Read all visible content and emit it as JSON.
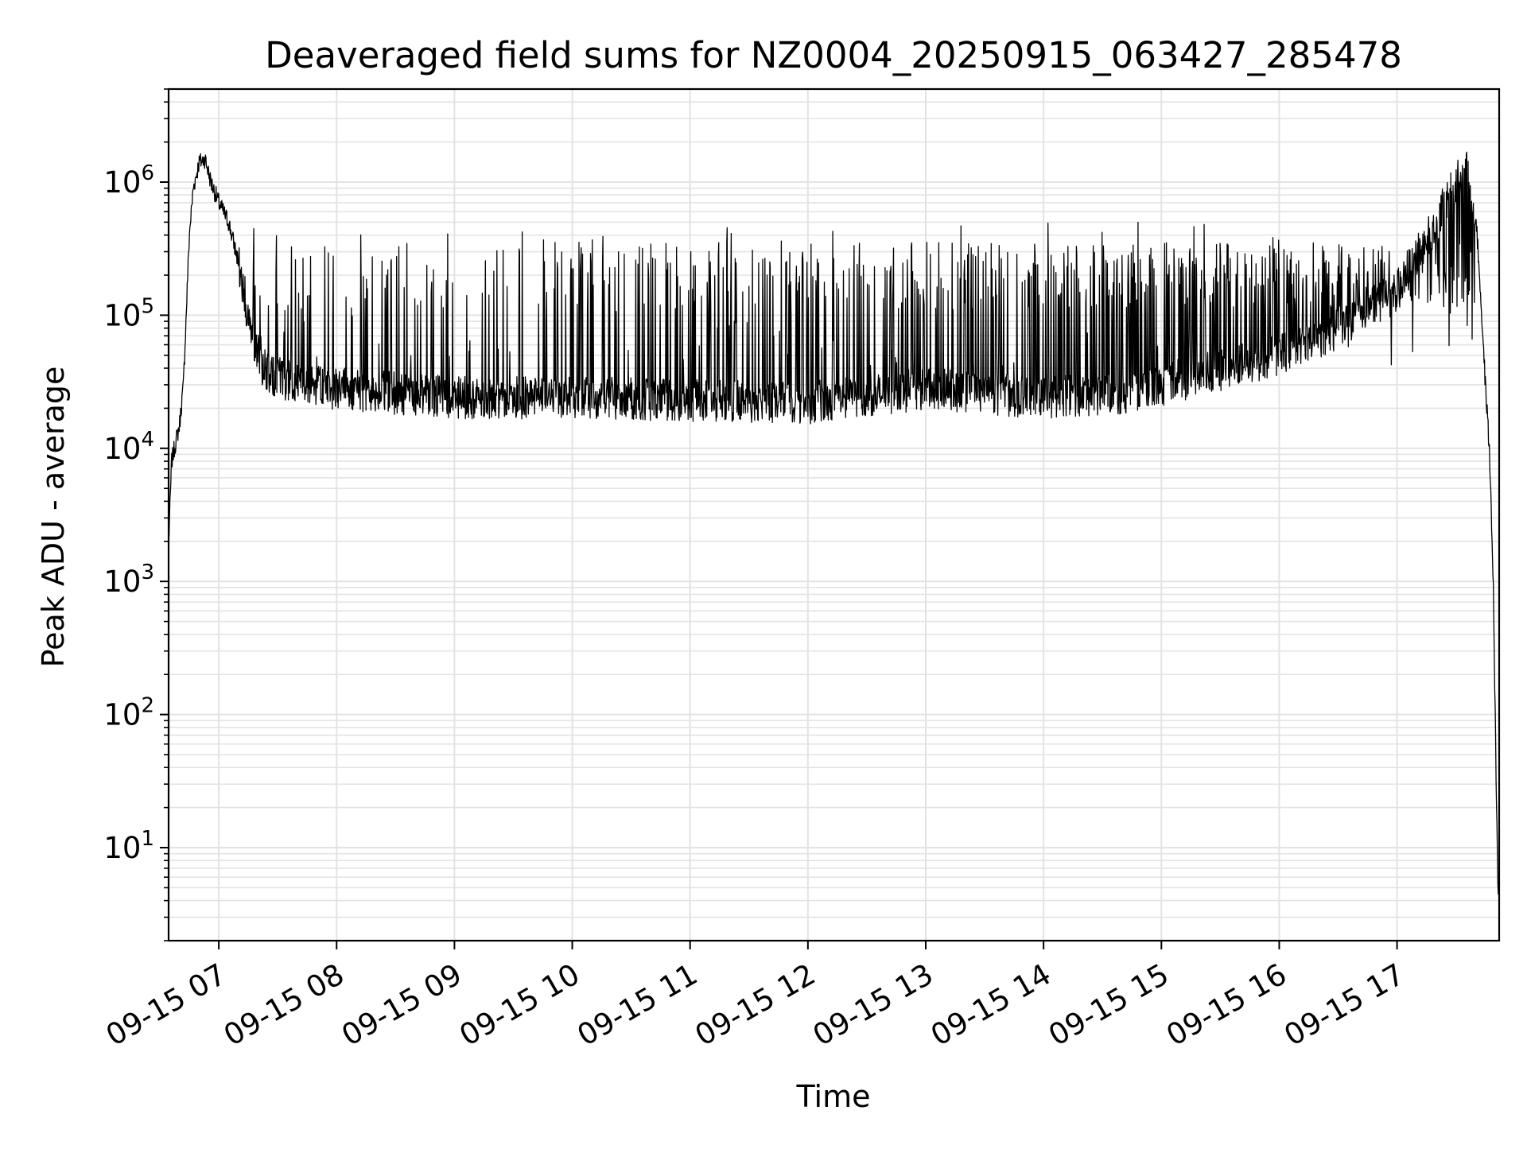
{
  "chart_data": {
    "type": "line",
    "title": "Deaveraged field sums for NZ0004_20250915_063427_285478",
    "xlabel": "Time",
    "ylabel": "Peak ADU - average",
    "yscale": "log",
    "ylim": [
      2,
      5000000
    ],
    "xlim": [
      "2025-09-15 06:34:27",
      "2025-09-15 17:52:00"
    ],
    "grid": true,
    "line_color": "#000000",
    "grid_color": "#e3e3e3",
    "x_ticks": [
      {
        "t": "2025-09-15 07:00",
        "label": "09-15 07"
      },
      {
        "t": "2025-09-15 08:00",
        "label": "09-15 08"
      },
      {
        "t": "2025-09-15 09:00",
        "label": "09-15 09"
      },
      {
        "t": "2025-09-15 10:00",
        "label": "09-15 10"
      },
      {
        "t": "2025-09-15 11:00",
        "label": "09-15 11"
      },
      {
        "t": "2025-09-15 12:00",
        "label": "09-15 12"
      },
      {
        "t": "2025-09-15 13:00",
        "label": "09-15 13"
      },
      {
        "t": "2025-09-15 14:00",
        "label": "09-15 14"
      },
      {
        "t": "2025-09-15 15:00",
        "label": "09-15 15"
      },
      {
        "t": "2025-09-15 16:00",
        "label": "09-15 16"
      },
      {
        "t": "2025-09-15 17:00",
        "label": "09-15 17"
      }
    ],
    "y_ticks": [
      {
        "value": 10,
        "base": "10",
        "exp": "1"
      },
      {
        "value": 100,
        "base": "10",
        "exp": "2"
      },
      {
        "value": 1000,
        "base": "10",
        "exp": "3"
      },
      {
        "value": 10000,
        "base": "10",
        "exp": "4"
      },
      {
        "value": 100000,
        "base": "10",
        "exp": "5"
      },
      {
        "value": 1000000,
        "base": "10",
        "exp": "6"
      }
    ],
    "envelope": [
      {
        "t": "2025-09-15 06:34:30",
        "y": 2000
      },
      {
        "t": "2025-09-15 06:36:00",
        "y": 8000
      },
      {
        "t": "2025-09-15 06:40:00",
        "y": 15000
      },
      {
        "t": "2025-09-15 06:42:00",
        "y": 30000
      },
      {
        "t": "2025-09-15 06:45:00",
        "y": 400000
      },
      {
        "t": "2025-09-15 06:47:00",
        "y": 900000
      },
      {
        "t": "2025-09-15 06:50:00",
        "y": 1400000
      },
      {
        "t": "2025-09-15 06:53:00",
        "y": 1500000
      },
      {
        "t": "2025-09-15 06:56:00",
        "y": 1000000
      },
      {
        "t": "2025-09-15 07:00:00",
        "y": 700000
      },
      {
        "t": "2025-09-15 07:05:00",
        "y": 500000
      },
      {
        "t": "2025-09-15 07:10:00",
        "y": 250000
      },
      {
        "t": "2025-09-15 07:15:00",
        "y": 100000
      },
      {
        "t": "2025-09-15 07:20:00",
        "y": 50000
      },
      {
        "t": "2025-09-15 07:25:00",
        "y": 35000
      },
      {
        "t": "2025-09-15 08:00:00",
        "y": 28000
      },
      {
        "t": "2025-09-15 09:00:00",
        "y": 24000
      },
      {
        "t": "2025-09-15 10:00:00",
        "y": 24000
      },
      {
        "t": "2025-09-15 11:00:00",
        "y": 23000
      },
      {
        "t": "2025-09-15 12:00:00",
        "y": 22000
      },
      {
        "t": "2025-09-15 13:00:00",
        "y": 28000
      },
      {
        "t": "2025-09-15 14:00:00",
        "y": 24000
      },
      {
        "t": "2025-09-15 14:40:00",
        "y": 26000
      },
      {
        "t": "2025-09-15 15:00:00",
        "y": 30000
      },
      {
        "t": "2025-09-15 16:00:00",
        "y": 50000
      },
      {
        "t": "2025-09-15 16:30:00",
        "y": 80000
      },
      {
        "t": "2025-09-15 17:00:00",
        "y": 150000
      },
      {
        "t": "2025-09-15 17:20:00",
        "y": 500000
      },
      {
        "t": "2025-09-15 17:30:00",
        "y": 1000000
      },
      {
        "t": "2025-09-15 17:36:00",
        "y": 1200000
      },
      {
        "t": "2025-09-15 17:40:00",
        "y": 600000
      },
      {
        "t": "2025-09-15 17:42:00",
        "y": 200000
      },
      {
        "t": "2025-09-15 17:45:00",
        "y": 30000
      },
      {
        "t": "2025-09-15 17:47:00",
        "y": 10000
      },
      {
        "t": "2025-09-15 17:49:00",
        "y": 1000
      },
      {
        "t": "2025-09-15 17:50:30",
        "y": 30
      },
      {
        "t": "2025-09-15 17:51:30",
        "y": 4
      }
    ]
  }
}
